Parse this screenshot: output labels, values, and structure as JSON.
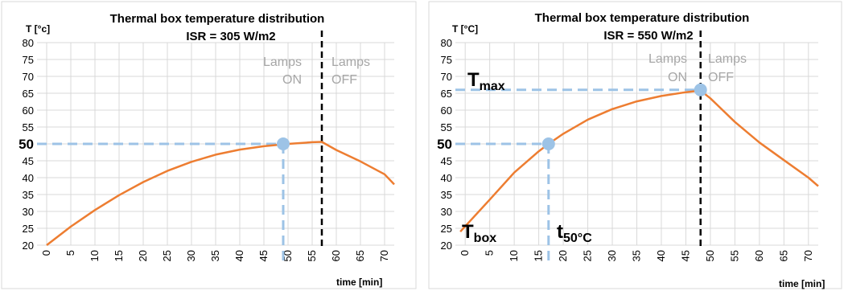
{
  "chart_data": [
    {
      "type": "line",
      "title": "Thermal box temperature distribution",
      "subtitle": "ISR = 305 W/m2",
      "ylabel": "T [°c]",
      "xlabel": "time [min]",
      "ylim": [
        20,
        80
      ],
      "yticks": [
        20,
        25,
        30,
        35,
        40,
        45,
        50,
        55,
        60,
        65,
        70,
        75,
        80
      ],
      "xlim": [
        -2,
        72
      ],
      "xticks": [
        0,
        5,
        10,
        15,
        20,
        25,
        30,
        35,
        40,
        45,
        50,
        55,
        60,
        65,
        70
      ],
      "grid": true,
      "series": [
        {
          "color": "#ED7D31",
          "x": [
            0,
            5,
            10,
            15,
            20,
            25,
            30,
            35,
            40,
            45,
            50,
            55,
            57,
            60,
            65,
            70,
            72
          ],
          "y": [
            20,
            25.5,
            30.4,
            34.8,
            38.7,
            42.0,
            44.7,
            46.8,
            48.3,
            49.3,
            50.0,
            50.5,
            50.6,
            48.2,
            44.8,
            41.0,
            38
          ]
        }
      ],
      "marker": {
        "x": 49,
        "y": 50,
        "color": "#9DC3E6"
      },
      "highlight_y_label": "50",
      "lamps_off_line_x": 57,
      "annotations": {
        "lamps_label": "Lamps",
        "on_label": "ON",
        "off_label": "OFF"
      }
    },
    {
      "type": "line",
      "title": "Thermal box temperature distribution",
      "subtitle": "ISR = 550 W/m2",
      "ylabel": "T [°C]",
      "xlabel": "time [min]",
      "ylim": [
        20,
        80
      ],
      "yticks": [
        20,
        25,
        30,
        35,
        40,
        45,
        50,
        55,
        60,
        65,
        70,
        75,
        80
      ],
      "xlim": [
        -2,
        72
      ],
      "xticks": [
        0,
        5,
        10,
        15,
        20,
        25,
        30,
        35,
        40,
        45,
        50,
        55,
        60,
        65,
        70
      ],
      "grid": true,
      "series": [
        {
          "color": "#ED7D31",
          "x": [
            -1,
            5,
            10,
            15,
            17,
            20,
            25,
            30,
            35,
            40,
            45,
            48,
            50,
            55,
            60,
            65,
            70,
            72
          ],
          "y": [
            24,
            33.5,
            41.5,
            47.8,
            50.0,
            53.0,
            57.2,
            60.3,
            62.6,
            64.2,
            65.3,
            65.8,
            63.5,
            56.5,
            50.4,
            45.2,
            40.0,
            37.5
          ]
        }
      ],
      "markers": [
        {
          "x": 17,
          "y": 50,
          "color": "#9DC3E6"
        },
        {
          "x": 48,
          "y": 66,
          "color": "#9DC3E6"
        }
      ],
      "highlight_y_label": "50",
      "lamps_off_line_x": 48,
      "annotations": {
        "lamps_label": "Lamps",
        "on_label": "ON",
        "off_label": "OFF",
        "tmax_main": "T",
        "tmax_sub": "max",
        "tbox_main": "T",
        "tbox_sub": "box",
        "t50_main": "t",
        "t50_sub": "50°C"
      }
    }
  ]
}
